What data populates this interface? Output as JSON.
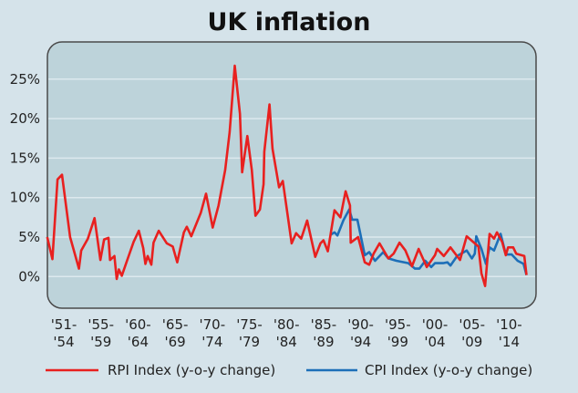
{
  "chart_data": {
    "type": "line",
    "title": "UK inflation",
    "xlabel": "",
    "ylabel": "",
    "ylim": [
      -4,
      29
    ],
    "xlim": [
      1950,
      2016
    ],
    "grid": true,
    "legend_placement": "bottom",
    "y_ticks": [
      "0%",
      "5%",
      "10%",
      "15%",
      "20%",
      "25%"
    ],
    "y_tick_values": [
      0,
      5,
      10,
      15,
      20,
      25
    ],
    "x_ticks": [
      [
        "'51-",
        "'54"
      ],
      [
        "'55-",
        "'59"
      ],
      [
        "'60-",
        "'64"
      ],
      [
        "'65-",
        "'69"
      ],
      [
        "'70-",
        "'74"
      ],
      [
        "'75-",
        "'79"
      ],
      [
        "'80-",
        "'84"
      ],
      [
        "'85-",
        "'89"
      ],
      [
        "'90-",
        "'94"
      ],
      [
        "'95-",
        "'99"
      ],
      [
        "'00-",
        "'04"
      ],
      [
        "'05-",
        "'09"
      ],
      [
        "'10-",
        "'14"
      ]
    ],
    "series": [
      {
        "name": "RPI Index (y-o-y change)",
        "color": "#e8201f",
        "x": [
          1950.1,
          1950.8,
          1951.5,
          1952.1,
          1953.2,
          1954.4,
          1954.7,
          1955.6,
          1956.5,
          1957.3,
          1957.8,
          1958.4,
          1958.6,
          1959.2,
          1959.5,
          1959.8,
          1960.2,
          1960.9,
          1961.8,
          1962.5,
          1963.1,
          1963.4,
          1963.7,
          1964.2,
          1964.5,
          1965.2,
          1966.3,
          1967.1,
          1967.7,
          1968.6,
          1969.0,
          1969.6,
          1970.9,
          1971.6,
          1972.5,
          1973.3,
          1974.2,
          1974.8,
          1975.5,
          1976.2,
          1976.5,
          1977.2,
          1977.8,
          1978.3,
          1978.9,
          1979.4,
          1979.5,
          1980.2,
          1980.6,
          1981.5,
          1982.0,
          1983.2,
          1983.8,
          1984.5,
          1985.3,
          1986.4,
          1987.1,
          1987.5,
          1988.1,
          1989.0,
          1989.8,
          1990.5,
          1991.1,
          1991.2,
          1992.2,
          1993.1,
          1993.7,
          1994.3,
          1995.1,
          1996.3,
          1997.0,
          1997.8,
          1998.6,
          1999.5,
          2000.4,
          2001.5,
          2002.6,
          2002.9,
          2003.8,
          2004.7,
          2006.0,
          2006.9,
          2008.5,
          2008.9,
          2009.4,
          2010.0,
          2010.6,
          2011.0,
          2011.7,
          2012.2,
          2012.5,
          2013.2,
          2013.6,
          2014.7,
          2015.0
        ],
        "y": [
          5.0,
          2.2,
          12.3,
          12.9,
          5.0,
          1.0,
          3.3,
          4.8,
          7.4,
          2.1,
          4.7,
          4.9,
          2.1,
          2.6,
          -0.3,
          0.9,
          0.1,
          2.0,
          4.4,
          5.8,
          3.6,
          1.6,
          2.6,
          1.5,
          4.3,
          5.8,
          4.2,
          3.8,
          1.8,
          5.6,
          6.3,
          5.1,
          8.1,
          10.5,
          6.2,
          9.0,
          13.5,
          18.3,
          26.7,
          20.6,
          13.2,
          17.8,
          13.5,
          7.7,
          8.5,
          11.7,
          15.8,
          21.8,
          16.2,
          11.3,
          12.1,
          4.2,
          5.5,
          4.8,
          7.1,
          2.5,
          4.2,
          4.6,
          3.2,
          8.4,
          7.5,
          10.8,
          9.0,
          4.3,
          5.0,
          1.8,
          1.5,
          2.9,
          4.2,
          2.3,
          2.9,
          4.3,
          3.3,
          1.3,
          3.5,
          1.2,
          2.7,
          3.5,
          2.6,
          3.7,
          2.1,
          5.1,
          3.8,
          0.4,
          -1.2,
          5.4,
          4.8,
          5.6,
          4.4,
          2.7,
          3.7,
          3.7,
          2.9,
          2.6,
          0.2
        ]
      },
      {
        "name": "CPI Index (y-o-y change)",
        "color": "#1d6fb8",
        "x": [
          1988.5,
          1989.0,
          1989.4,
          1990.2,
          1991.0,
          1991.4,
          1992.1,
          1993.1,
          1993.7,
          1994.5,
          1995.6,
          1996.3,
          1997.4,
          1999.0,
          1999.9,
          2000.5,
          2001.3,
          2002.1,
          2002.6,
          2003.7,
          2004.3,
          2004.7,
          2005.6,
          2006.9,
          2007.6,
          2008.0,
          2008.2,
          2008.9,
          2009.5,
          2010.0,
          2010.6,
          2011.5,
          2012.2,
          2013.0,
          2013.8,
          2014.6,
          2015.0
        ],
        "y": [
          5.3,
          5.6,
          5.2,
          7.1,
          8.5,
          7.2,
          7.2,
          2.7,
          3.1,
          2.0,
          3.1,
          2.3,
          2.0,
          1.7,
          1.0,
          1.0,
          2.0,
          1.2,
          1.7,
          1.7,
          1.8,
          1.4,
          2.6,
          3.3,
          2.3,
          2.9,
          5.1,
          3.5,
          1.6,
          3.7,
          3.3,
          5.4,
          2.8,
          2.8,
          2.0,
          1.6,
          0.2
        ]
      }
    ]
  }
}
